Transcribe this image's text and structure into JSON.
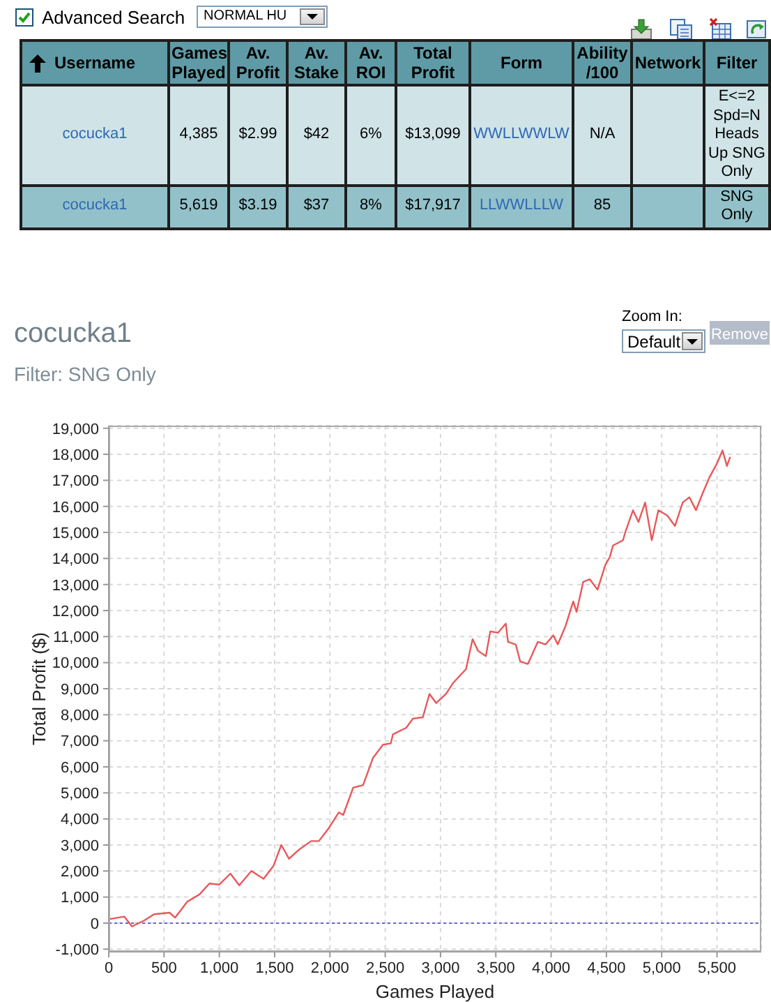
{
  "chart_data": [
    {
      "type": "other",
      "annotations": [
        "Advanced Search",
        "NORMAL HU"
      ],
      "categories": [
        "Username",
        "Games Played",
        "Av. Profit",
        "Av. Stake",
        "Av. ROI",
        "Total Profit",
        "Form",
        "Ability /100",
        "Network",
        "Filter"
      ],
      "cell_labels": [
        [
          "cocucka1",
          "4,385",
          "$2.99",
          "$42",
          "6%",
          "$13,099",
          "WWLLWWLW",
          "N/A",
          null,
          "E<=2 Spd=N Heads Up SNG Only"
        ],
        [
          "cocucka1",
          "5,619",
          "$3.19",
          "$37",
          "8%",
          "$17,917",
          "LLWWLLLW",
          "85",
          null,
          "SNG Only"
        ]
      ]
    },
    {
      "type": "line",
      "title": "cocucka1",
      "subtitle": "Filter: SNG Only",
      "xlabel": "Games Played",
      "ylabel": "Total Profit ($)",
      "annotations": [
        "Zoom In:",
        "Default",
        "Remove"
      ],
      "color": "#e8585a",
      "marker": "none",
      "grid": true,
      "x": [
        0,
        140,
        210,
        320,
        410,
        550,
        600,
        710,
        820,
        910,
        1000,
        1100,
        1180,
        1290,
        1400,
        1490,
        1560,
        1630,
        1720,
        1830,
        1900,
        1990,
        2080,
        2120,
        2210,
        2300,
        2390,
        2480,
        2550,
        2570,
        2690,
        2750,
        2840,
        2900,
        2960,
        3050,
        3110,
        3230,
        3290,
        3340,
        3410,
        3450,
        3520,
        3590,
        3610,
        3680,
        3720,
        3790,
        3880,
        3950,
        4020,
        4060,
        4130,
        4200,
        4230,
        4290,
        4350,
        4420,
        4490,
        4530,
        4560,
        4650,
        4670,
        4740,
        4790,
        4850,
        4910,
        4970,
        5050,
        5120,
        5190,
        5250,
        5310,
        5370,
        5430,
        5500,
        5550,
        5590,
        5619
      ],
      "values": [
        150,
        250,
        -130,
        100,
        340,
        400,
        210,
        820,
        1100,
        1520,
        1480,
        1900,
        1450,
        2000,
        1700,
        2200,
        3000,
        2470,
        2820,
        3150,
        3150,
        3650,
        4250,
        4150,
        5200,
        5300,
        6350,
        6850,
        6900,
        7250,
        7500,
        7850,
        7900,
        8800,
        8450,
        8800,
        9200,
        9750,
        10900,
        10450,
        10250,
        11200,
        11150,
        11500,
        10800,
        10700,
        10050,
        9950,
        10800,
        10700,
        11050,
        10700,
        11400,
        12350,
        11950,
        13100,
        13200,
        12800,
        13750,
        14050,
        14500,
        14700,
        15000,
        15850,
        15400,
        16150,
        14700,
        15850,
        15650,
        15250,
        16150,
        16350,
        15850,
        16500,
        17100,
        17650,
        18150,
        17550,
        17900
      ],
      "xlim": [
        0,
        5900
      ],
      "xticks": [
        0,
        500,
        {
          "value": 1000,
          "label": "1,000"
        },
        {
          "value": 1500,
          "label": "1,500"
        },
        {
          "value": 2000,
          "label": "2,000"
        },
        {
          "value": 2500,
          "label": "2,500"
        },
        {
          "value": 3000,
          "label": "3,000"
        },
        {
          "value": 3500,
          "label": "3,500"
        },
        {
          "value": 4000,
          "label": "4,000"
        },
        {
          "value": 4500,
          "label": "4,500"
        },
        {
          "value": 5000,
          "label": "5,000"
        },
        {
          "value": 5500,
          "label": "5,500"
        }
      ],
      "ylim": [
        -1100,
        19100
      ],
      "yticks": [
        {
          "value": -1000,
          "label": "-1,000"
        },
        0,
        {
          "value": 1000,
          "label": "1,000"
        },
        {
          "value": 2000,
          "label": "2,000"
        },
        {
          "value": 3000,
          "label": "3,000"
        },
        {
          "value": 4000,
          "label": "4,000"
        },
        {
          "value": 5000,
          "label": "5,000"
        },
        {
          "value": 6000,
          "label": "6,000"
        },
        {
          "value": 7000,
          "label": "7,000"
        },
        {
          "value": 8000,
          "label": "8,000"
        },
        {
          "value": 9000,
          "label": "9,000"
        },
        {
          "value": 10000,
          "label": "10,000"
        },
        {
          "value": 11000,
          "label": "11,000"
        },
        {
          "value": 12000,
          "label": "12,000"
        },
        {
          "value": 13000,
          "label": "13,000"
        },
        {
          "value": 14000,
          "label": "14,000"
        },
        {
          "value": 15000,
          "label": "15,000"
        },
        {
          "value": 16000,
          "label": "16,000"
        },
        {
          "value": 17000,
          "label": "17,000"
        },
        {
          "value": 18000,
          "label": "18,000"
        },
        {
          "value": 19000,
          "label": "19,000"
        }
      ],
      "ref_lines": [
        {
          "axis": "y",
          "value": 0,
          "color": "#6666cc",
          "line_style": "dotted"
        }
      ]
    }
  ]
}
